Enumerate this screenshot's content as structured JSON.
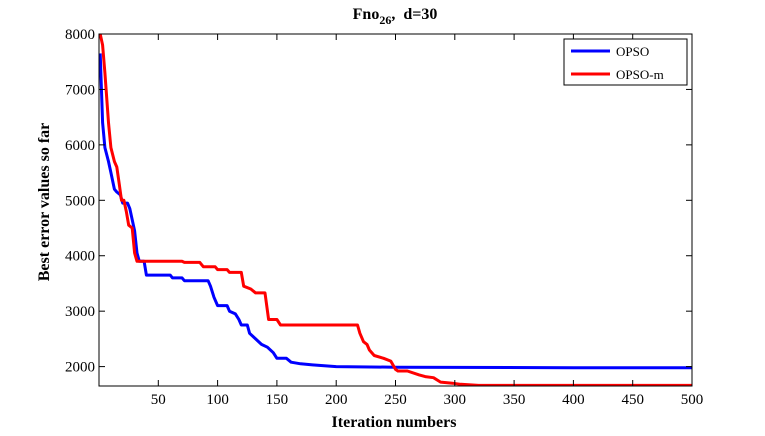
{
  "chart_data": {
    "type": "line",
    "title": "Fno",
    "title_subscript": "26",
    "title_suffix": ",  d=30",
    "xlabel": "Iteration numbers",
    "ylabel": "Best error values so far",
    "xlim": [
      0,
      500
    ],
    "ylim": [
      1650,
      8000
    ],
    "x_ticks": [
      50,
      100,
      150,
      200,
      250,
      300,
      350,
      400,
      450,
      500
    ],
    "y_ticks": [
      2000,
      3000,
      4000,
      5000,
      6000,
      7000,
      8000
    ],
    "grid": false,
    "legend_position": "top-right",
    "series": [
      {
        "name": "OPSO",
        "color": "#0000ff",
        "points": [
          [
            1,
            7650
          ],
          [
            3,
            6400
          ],
          [
            5,
            5950
          ],
          [
            8,
            5700
          ],
          [
            10,
            5500
          ],
          [
            13,
            5200
          ],
          [
            15,
            5150
          ],
          [
            18,
            5100
          ],
          [
            20,
            4950
          ],
          [
            24,
            4950
          ],
          [
            26,
            4850
          ],
          [
            28,
            4650
          ],
          [
            30,
            4450
          ],
          [
            32,
            4050
          ],
          [
            34,
            3900
          ],
          [
            38,
            3900
          ],
          [
            40,
            3650
          ],
          [
            60,
            3650
          ],
          [
            62,
            3600
          ],
          [
            70,
            3600
          ],
          [
            72,
            3550
          ],
          [
            92,
            3550
          ],
          [
            94,
            3450
          ],
          [
            97,
            3250
          ],
          [
            100,
            3100
          ],
          [
            108,
            3100
          ],
          [
            110,
            3000
          ],
          [
            115,
            2950
          ],
          [
            118,
            2850
          ],
          [
            120,
            2750
          ],
          [
            125,
            2750
          ],
          [
            127,
            2600
          ],
          [
            132,
            2500
          ],
          [
            137,
            2400
          ],
          [
            142,
            2350
          ],
          [
            147,
            2250
          ],
          [
            150,
            2150
          ],
          [
            158,
            2150
          ],
          [
            162,
            2080
          ],
          [
            170,
            2050
          ],
          [
            180,
            2030
          ],
          [
            200,
            2000
          ],
          [
            250,
            1990
          ],
          [
            300,
            1985
          ],
          [
            400,
            1980
          ],
          [
            500,
            1980
          ]
        ]
      },
      {
        "name": "OPSO-m",
        "color": "#ff0000",
        "points": [
          [
            1,
            8000
          ],
          [
            3,
            7800
          ],
          [
            5,
            7300
          ],
          [
            8,
            6400
          ],
          [
            10,
            5950
          ],
          [
            13,
            5700
          ],
          [
            15,
            5600
          ],
          [
            17,
            5300
          ],
          [
            19,
            5000
          ],
          [
            21,
            5000
          ],
          [
            23,
            4800
          ],
          [
            25,
            4550
          ],
          [
            28,
            4500
          ],
          [
            30,
            4050
          ],
          [
            32,
            3900
          ],
          [
            70,
            3900
          ],
          [
            72,
            3880
          ],
          [
            85,
            3880
          ],
          [
            88,
            3800
          ],
          [
            98,
            3800
          ],
          [
            100,
            3750
          ],
          [
            108,
            3750
          ],
          [
            110,
            3700
          ],
          [
            120,
            3700
          ],
          [
            122,
            3450
          ],
          [
            128,
            3400
          ],
          [
            132,
            3330
          ],
          [
            140,
            3330
          ],
          [
            143,
            2850
          ],
          [
            150,
            2850
          ],
          [
            153,
            2750
          ],
          [
            218,
            2750
          ],
          [
            220,
            2600
          ],
          [
            223,
            2450
          ],
          [
            226,
            2400
          ],
          [
            228,
            2300
          ],
          [
            232,
            2200
          ],
          [
            240,
            2150
          ],
          [
            246,
            2100
          ],
          [
            250,
            1950
          ],
          [
            252,
            1920
          ],
          [
            260,
            1920
          ],
          [
            270,
            1850
          ],
          [
            275,
            1820
          ],
          [
            282,
            1800
          ],
          [
            288,
            1720
          ],
          [
            298,
            1700
          ],
          [
            305,
            1680
          ],
          [
            320,
            1660
          ],
          [
            500,
            1660
          ]
        ]
      }
    ]
  }
}
